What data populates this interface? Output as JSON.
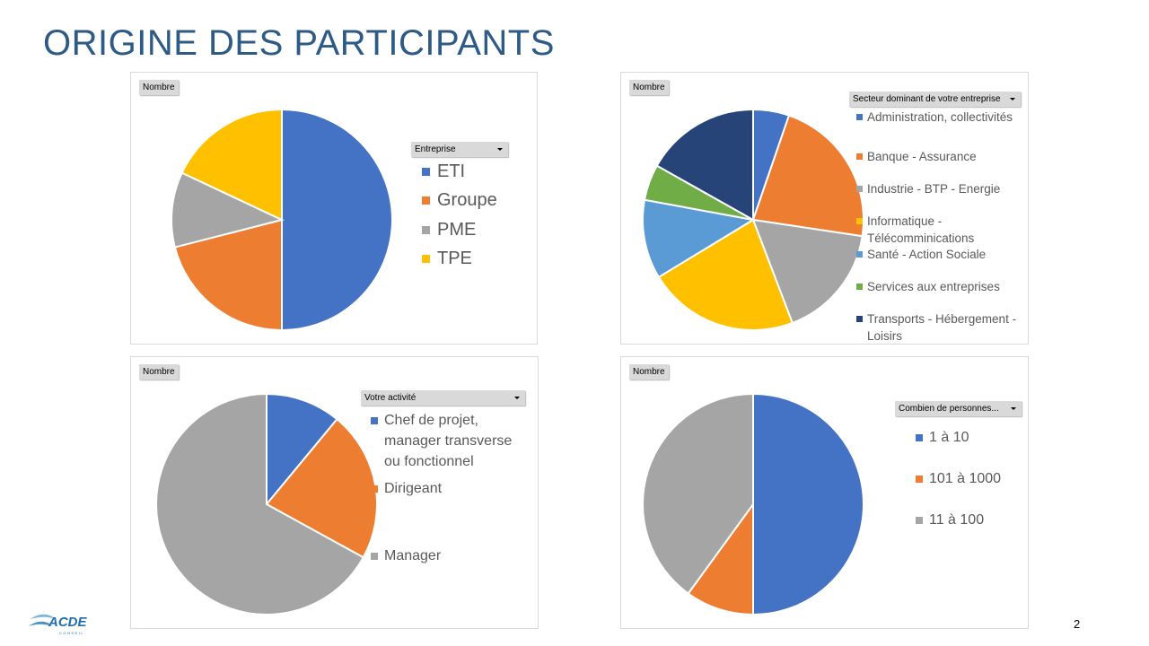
{
  "title": "ORIGINE DES PARTICIPANTS",
  "page_number": "2",
  "logo": {
    "text": "ACDE",
    "subtext": "CONSEIL"
  },
  "chart_data": [
    {
      "type": "pie",
      "field_button": "Nombre",
      "filter_label": "Entreprise",
      "categories": [
        "ETI",
        "Groupe",
        "PME",
        "TPE"
      ],
      "values": [
        50,
        21,
        11,
        18
      ],
      "colors": [
        "#4472c4",
        "#ed7d31",
        "#a5a5a5",
        "#ffc000"
      ],
      "legend_position": "right"
    },
    {
      "type": "pie",
      "field_button": "Nombre",
      "filter_label": "Secteur dominant de votre entreprise",
      "categories": [
        "Administration, collectivités",
        "Banque - Assurance",
        "Industrie - BTP - Energie",
        "Informatique - Télécomminications",
        "Santé - Action Sociale",
        "Services aux entreprises",
        "Transports - Hébergement - Loisirs"
      ],
      "values": [
        5,
        21,
        16,
        21,
        11,
        5,
        16
      ],
      "colors": [
        "#4472c4",
        "#ed7d31",
        "#a5a5a5",
        "#ffc000",
        "#5b9bd5",
        "#70ad47",
        "#264478"
      ],
      "legend_position": "right"
    },
    {
      "type": "pie",
      "field_button": "Nombre",
      "filter_label": "Votre activité",
      "categories": [
        "Chef de projet, manager transverse ou fonctionnel",
        "Dirigeant",
        "Manager"
      ],
      "values": [
        11,
        22,
        67
      ],
      "colors": [
        "#4472c4",
        "#ed7d31",
        "#a5a5a5"
      ],
      "legend_position": "right"
    },
    {
      "type": "pie",
      "field_button": "Nombre",
      "filter_label": "Combien de personnes...",
      "categories": [
        "1 à 10",
        "101 à 1000",
        "11 à 100"
      ],
      "values": [
        50,
        10,
        40
      ],
      "colors": [
        "#4472c4",
        "#ed7d31",
        "#a5a5a5"
      ],
      "legend_position": "right"
    }
  ]
}
